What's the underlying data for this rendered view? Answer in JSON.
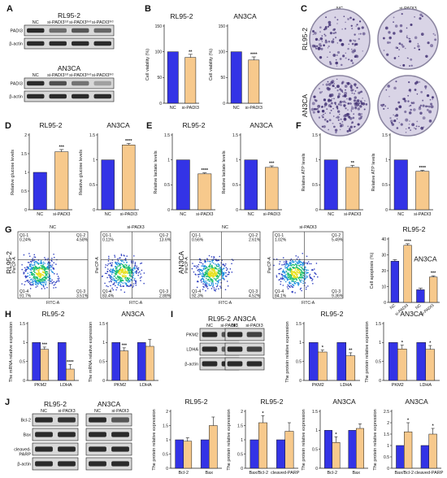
{
  "colors": {
    "nc": "#3333e6",
    "si": "#f7c98c",
    "edge": "#1a1a1a",
    "blot_bg": "#d8d8d8",
    "band": "#2a2a2a",
    "plate_fill": "#d9d4e6",
    "colony": "#4a3a7a"
  },
  "panels": {
    "A": {
      "label": "A",
      "blots": [
        {
          "cell_line": "RL95-2",
          "lanes": [
            "NC",
            "si-PADI3¹ˢᵗ",
            "si-PADI3²ⁿᵈ",
            "si-PADI3³ʳᵈ"
          ],
          "rows": [
            {
              "name": "PADI3",
              "intensity": [
                1.0,
                0.55,
                0.7,
                0.6
              ]
            },
            {
              "name": "β-actin",
              "intensity": [
                1.0,
                1.0,
                1.0,
                1.0
              ]
            }
          ]
        },
        {
          "cell_line": "AN3CA",
          "lanes": [
            "NC",
            "si-PADI3¹ˢᵗ",
            "si-PADI3²ⁿᵈ",
            "si-PADI3³ʳᵈ"
          ],
          "rows": [
            {
              "name": "PADI3",
              "intensity": [
                1.0,
                0.75,
                0.5,
                0.2
              ]
            },
            {
              "name": "β-actin",
              "intensity": [
                1.0,
                1.0,
                1.0,
                1.0
              ]
            }
          ]
        }
      ]
    },
    "C": {
      "label": "C",
      "col_labels": [
        "NC",
        "si-PADI3"
      ],
      "row_labels": [
        "RL95-2",
        "AN3CA"
      ],
      "density": [
        [
          0.5,
          0.25
        ],
        [
          0.9,
          0.4
        ]
      ]
    },
    "G": {
      "label": "G",
      "flows": [
        {
          "title": "NC",
          "row_label": "RL95-2",
          "quads": [
            "Q1-1\n0.24%",
            "Q1-2\n4.58%",
            "Q1-4\n91.7%",
            "Q1-3\n3.51%"
          ]
        },
        {
          "title": "si-PADI3",
          "row_label": "",
          "quads": [
            "Q1-1\n0.11%",
            "Q1-2\n13.6%",
            "Q1-4\n83.4%",
            "Q1-3\n2.88%"
          ]
        },
        {
          "title": "NC",
          "row_label": "AN3CA",
          "quads": [
            "Q1-1\n0.56%",
            "Q1-2\n2.61%",
            "Q1-4\n92.3%",
            "Q1-3\n4.52%"
          ]
        },
        {
          "title": "si-PADI3",
          "row_label": "",
          "quads": [
            "Q1-1\n1.02%",
            "Q1-2\n5.49%",
            "Q1-4\n84.1%",
            "Q1-3\n9.36%"
          ]
        }
      ],
      "axis_x": "FITC-A",
      "axis_y": "PerCP-A"
    },
    "I": {
      "label": "I",
      "blots": [
        {
          "cell_line": "RL95-2",
          "lanes": [
            "NC",
            "si-PADI3"
          ],
          "rows": [
            {
              "name": "PKM2",
              "intensity": [
                1.0,
                0.75
              ]
            },
            {
              "name": "LDHA",
              "intensity": [
                1.0,
                0.65
              ]
            },
            {
              "name": "β-actin",
              "intensity": [
                1.0,
                1.0
              ]
            }
          ]
        },
        {
          "cell_line": "AN3CA",
          "lanes": [
            "NC",
            "si-PADI3"
          ],
          "rows": [
            {
              "name": "PKM2",
              "intensity": [
                1.0,
                0.85
              ]
            },
            {
              "name": "LDHA",
              "intensity": [
                1.0,
                0.85
              ]
            },
            {
              "name": "β-actin",
              "intensity": [
                1.0,
                1.0
              ]
            }
          ]
        }
      ]
    },
    "J": {
      "label": "J",
      "blots": [
        {
          "cell_line": "RL95-2",
          "lanes": [
            "NC",
            "si-PADI3"
          ],
          "rows": [
            {
              "name": "Bcl-2",
              "intensity": [
                1.0,
                0.95
              ]
            },
            {
              "name": "Bax",
              "intensity": [
                1.0,
                1.3
              ]
            },
            {
              "name": "cleaved-\nPARP",
              "intensity": [
                1.0,
                1.2
              ]
            },
            {
              "name": "β-actin",
              "intensity": [
                1.0,
                1.0
              ]
            }
          ]
        },
        {
          "cell_line": "AN3CA",
          "lanes": [
            "NC",
            "si-PADI3"
          ],
          "rows": [
            {
              "name": "Bcl-2",
              "intensity": [
                1.0,
                0.7
              ]
            },
            {
              "name": "Bax",
              "intensity": [
                1.0,
                1.05
              ]
            },
            {
              "name": "cleaved-\nPARP",
              "intensity": [
                1.0,
                1.3
              ]
            },
            {
              "name": "β-actin",
              "intensity": [
                1.0,
                1.0
              ]
            }
          ]
        }
      ]
    }
  },
  "chart_data": [
    {
      "id": "B1",
      "panel_label": "B",
      "type": "bar",
      "title": "RL95-2",
      "ylabel": "Cell viability (%)",
      "ylim": [
        0,
        150
      ],
      "yticks": [
        0,
        50,
        100,
        150
      ],
      "categories": [
        "NC",
        "si-PADI3"
      ],
      "values": [
        100,
        89
      ],
      "errors": [
        0,
        6
      ],
      "sig": [
        "",
        "**"
      ],
      "colors": [
        "nc",
        "si"
      ]
    },
    {
      "id": "B2",
      "type": "bar",
      "title": "AN3CA",
      "ylabel": "Cell viability (%)",
      "ylim": [
        0,
        150
      ],
      "yticks": [
        0,
        50,
        100,
        150
      ],
      "categories": [
        "NC",
        "si-PADI3"
      ],
      "values": [
        100,
        84
      ],
      "errors": [
        0,
        6
      ],
      "sig": [
        "",
        "****"
      ],
      "colors": [
        "nc",
        "si"
      ]
    },
    {
      "id": "D1",
      "panel_label": "D",
      "type": "bar",
      "title": "RL95-2",
      "ylabel": "Relative glucose levels",
      "ylim": [
        0,
        2.0
      ],
      "yticks": [
        0,
        0.5,
        1.0,
        1.5,
        2.0
      ],
      "categories": [
        "NC",
        "si-PADI3"
      ],
      "values": [
        1.0,
        1.55
      ],
      "errors": [
        0,
        0.06
      ],
      "sig": [
        "",
        "***"
      ],
      "colors": [
        "nc",
        "si"
      ]
    },
    {
      "id": "D2",
      "type": "bar",
      "title": "AN3CA",
      "ylabel": "Relative glucose levels",
      "ylim": [
        0,
        1.5
      ],
      "yticks": [
        0,
        0.5,
        1.0,
        1.5
      ],
      "categories": [
        "NC",
        "si-PADI3"
      ],
      "values": [
        1.0,
        1.3
      ],
      "errors": [
        0,
        0.03
      ],
      "sig": [
        "",
        "****"
      ],
      "colors": [
        "nc",
        "si"
      ]
    },
    {
      "id": "E1",
      "panel_label": "E",
      "type": "bar",
      "title": "RL95-2",
      "ylabel": "Relative lactate levels",
      "ylim": [
        0,
        1.5
      ],
      "yticks": [
        0,
        0.5,
        1.0,
        1.5
      ],
      "categories": [
        "NC",
        "si-PADI3"
      ],
      "values": [
        1.0,
        0.72
      ],
      "errors": [
        0,
        0.02
      ],
      "sig": [
        "",
        "****"
      ],
      "colors": [
        "nc",
        "si"
      ]
    },
    {
      "id": "E2",
      "type": "bar",
      "title": "AN3CA",
      "ylabel": "Relative lactate levels",
      "ylim": [
        0,
        1.5
      ],
      "yticks": [
        0,
        0.5,
        1.0,
        1.5
      ],
      "categories": [
        "NC",
        "si-PADI3"
      ],
      "values": [
        1.0,
        0.85
      ],
      "errors": [
        0,
        0.03
      ],
      "sig": [
        "",
        "***"
      ],
      "colors": [
        "nc",
        "si"
      ]
    },
    {
      "id": "F1",
      "panel_label": "F",
      "type": "bar",
      "title": "RL95-2",
      "ylabel": "Relative ATP levels",
      "ylim": [
        0,
        1.5
      ],
      "yticks": [
        0,
        0.5,
        1.0,
        1.5
      ],
      "categories": [
        "NC",
        "si-PADI3"
      ],
      "values": [
        1.0,
        0.85
      ],
      "errors": [
        0,
        0.04
      ],
      "sig": [
        "",
        "**"
      ],
      "colors": [
        "nc",
        "si"
      ]
    },
    {
      "id": "F2",
      "type": "bar",
      "title": "AN3CA",
      "ylabel": "Relative ATP levels",
      "ylim": [
        0,
        1.5
      ],
      "yticks": [
        0,
        0.5,
        1.0,
        1.5
      ],
      "categories": [
        "NC",
        "si-PADI3"
      ],
      "values": [
        1.0,
        0.77
      ],
      "errors": [
        0,
        0.02
      ],
      "sig": [
        "",
        "****"
      ],
      "colors": [
        "nc",
        "si"
      ]
    },
    {
      "id": "G5",
      "type": "bar",
      "title": "RL95-2",
      "ylabel": "Cell apoptosis (%)",
      "ylim": [
        0,
        40
      ],
      "yticks": [
        0,
        10,
        20,
        30,
        40
      ],
      "categories": [
        "NC",
        "si-PADI3",
        "NC",
        "si-PADI3"
      ],
      "values": [
        26,
        36,
        8,
        16
      ],
      "errors": [
        1,
        1,
        1,
        0.8
      ],
      "sig": [
        "",
        "****",
        "",
        "***"
      ],
      "colors": [
        "nc",
        "si",
        "nc",
        "si"
      ],
      "inner_label": "AN3CA"
    },
    {
      "id": "H1",
      "panel_label": "H",
      "type": "bar",
      "title": "RL95-2",
      "ylabel": "The mRNA relative expression",
      "ylim": [
        0,
        1.5
      ],
      "yticks": [
        0,
        0.5,
        1.0,
        1.5
      ],
      "categories": [
        "PKM2",
        "LDHA"
      ],
      "series": [
        {
          "values": [
            1.0,
            1.0
          ],
          "errors": [
            0,
            0
          ],
          "color": "nc"
        },
        {
          "values": [
            0.82,
            0.3
          ],
          "errors": [
            0.06,
            0.12
          ],
          "color": "si"
        }
      ],
      "sig": [
        [
          "",
          "***"
        ],
        [
          "",
          "****"
        ]
      ]
    },
    {
      "id": "H2",
      "type": "bar",
      "title": "AN3CA",
      "ylabel": "The mRNA relative expression",
      "ylim": [
        0,
        1.5
      ],
      "yticks": [
        0,
        0.5,
        1.0,
        1.5
      ],
      "categories": [
        "PKM2",
        "LDHA"
      ],
      "series": [
        {
          "values": [
            1.0,
            1.0
          ],
          "errors": [
            0,
            0
          ],
          "color": "nc"
        },
        {
          "values": [
            0.78,
            0.9
          ],
          "errors": [
            0.08,
            0.18
          ],
          "color": "si"
        }
      ],
      "sig": [
        [
          "",
          "***"
        ],
        [
          "",
          ""
        ]
      ]
    },
    {
      "id": "I3",
      "type": "bar",
      "title": "RL95-2",
      "ylabel": "The protein relative expression",
      "ylim": [
        0,
        1.5
      ],
      "yticks": [
        0,
        0.5,
        1.0,
        1.5
      ],
      "categories": [
        "PKM2",
        "LDHA"
      ],
      "series": [
        {
          "values": [
            1.0,
            1.0
          ],
          "errors": [
            0,
            0
          ],
          "color": "nc"
        },
        {
          "values": [
            0.75,
            0.65
          ],
          "errors": [
            0.05,
            0.08
          ],
          "color": "si"
        }
      ],
      "sig": [
        [
          "",
          "*"
        ],
        [
          "",
          "**"
        ]
      ]
    },
    {
      "id": "I4",
      "type": "bar",
      "title": "AN3CA",
      "ylabel": "The protein relative expression",
      "ylim": [
        0,
        1.5
      ],
      "yticks": [
        0,
        0.5,
        1.0,
        1.5
      ],
      "categories": [
        "PKM2",
        "LDHA"
      ],
      "series": [
        {
          "values": [
            1.0,
            1.0
          ],
          "errors": [
            0,
            0
          ],
          "color": "nc"
        },
        {
          "values": [
            0.83,
            0.82
          ],
          "errors": [
            0.1,
            0.1
          ],
          "color": "si"
        }
      ],
      "sig": [
        [
          "",
          "*"
        ],
        [
          "",
          "*"
        ]
      ]
    },
    {
      "id": "J3",
      "type": "bar",
      "title": "RL95-2",
      "ylabel": "The protein relative expression",
      "ylim": [
        0,
        2.0
      ],
      "yticks": [
        0,
        0.5,
        1.0,
        1.5,
        2.0
      ],
      "categories": [
        "Bcl-2",
        "Bax"
      ],
      "series": [
        {
          "values": [
            1.0,
            1.0
          ],
          "errors": [
            0,
            0
          ],
          "color": "nc"
        },
        {
          "values": [
            0.95,
            1.5
          ],
          "errors": [
            0.12,
            0.3
          ],
          "color": "si"
        }
      ],
      "sig": [
        [
          "",
          ""
        ],
        [
          "",
          ""
        ]
      ]
    },
    {
      "id": "J4",
      "type": "bar",
      "title": "RL95-2",
      "ylabel": "The protein relative expression",
      "ylim": [
        0,
        2.0
      ],
      "yticks": [
        0,
        0.5,
        1.0,
        1.5,
        2.0
      ],
      "categories": [
        "Bax/Bcl-2",
        "cleaved-PARP"
      ],
      "series": [
        {
          "values": [
            1.0,
            1.0
          ],
          "errors": [
            0,
            0
          ],
          "color": "nc"
        },
        {
          "values": [
            1.6,
            1.3
          ],
          "errors": [
            0.25,
            0.3
          ],
          "color": "si"
        }
      ],
      "sig": [
        [
          "",
          "*"
        ],
        [
          "",
          ""
        ]
      ]
    },
    {
      "id": "J5",
      "type": "bar",
      "title": "AN3CA",
      "ylabel": "The protein relative expression",
      "ylim": [
        0,
        1.5
      ],
      "yticks": [
        0,
        0.5,
        1.0,
        1.5
      ],
      "categories": [
        "Bcl-2",
        "Bax"
      ],
      "series": [
        {
          "values": [
            1.0,
            1.0
          ],
          "errors": [
            0,
            0
          ],
          "color": "nc"
        },
        {
          "values": [
            0.68,
            1.05
          ],
          "errors": [
            0.15,
            0.12
          ],
          "color": "si"
        }
      ],
      "sig": [
        [
          "",
          "*"
        ],
        [
          "",
          ""
        ]
      ]
    },
    {
      "id": "J6",
      "type": "bar",
      "title": "AN3CA",
      "ylabel": "The protein relative expression",
      "ylim": [
        0,
        2.5
      ],
      "yticks": [
        0,
        0.5,
        1.0,
        1.5,
        2.0,
        2.5
      ],
      "categories": [
        "Bax/Bcl-2",
        "cleaved-PARP"
      ],
      "series": [
        {
          "values": [
            1.0,
            1.0
          ],
          "errors": [
            0,
            0
          ],
          "color": "nc"
        },
        {
          "values": [
            1.6,
            1.5
          ],
          "errors": [
            0.4,
            0.25
          ],
          "color": "si"
        }
      ],
      "sig": [
        [
          "",
          "*"
        ],
        [
          "",
          "*"
        ]
      ]
    }
  ]
}
